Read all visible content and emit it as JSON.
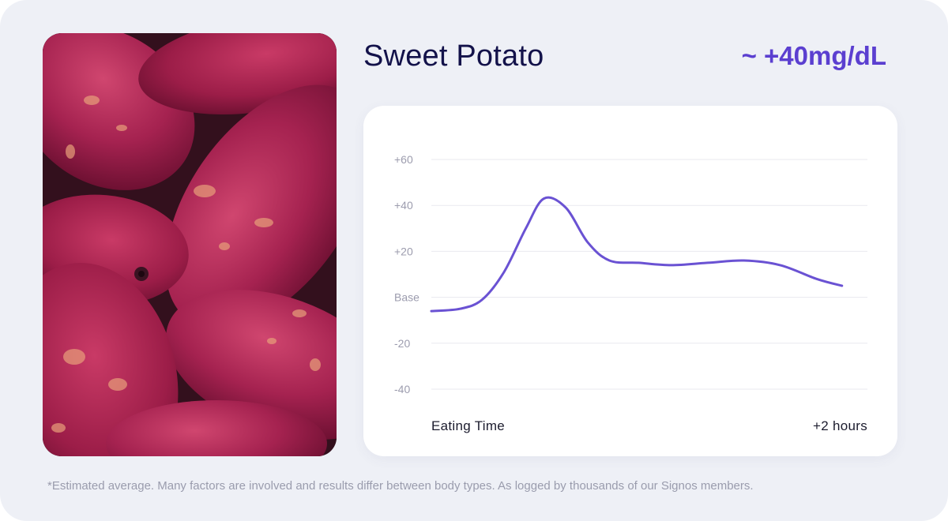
{
  "food": {
    "name": "Sweet Potato",
    "spike_label": "~ +40mg/dL"
  },
  "chart_data": {
    "type": "line",
    "title": "",
    "xlabel": "",
    "ylabel": "",
    "x_tick_labels": [
      "Eating Time",
      "+2 hours"
    ],
    "y_ticks": [
      {
        "value": 60,
        "label": "+60"
      },
      {
        "value": 40,
        "label": "+40"
      },
      {
        "value": 20,
        "label": "+20"
      },
      {
        "value": 0,
        "label": "Base"
      },
      {
        "value": -20,
        "label": "-20"
      },
      {
        "value": -40,
        "label": "-40"
      }
    ],
    "xlim": [
      0,
      120
    ],
    "ylim": [
      -40,
      60
    ],
    "grid": true,
    "series": [
      {
        "color": "#6a52d3",
        "x": [
          0,
          8,
          14,
          20,
          26,
          31,
          37,
          43,
          49,
          57,
          66,
          76,
          86,
          96,
          106,
          113
        ],
        "y": [
          -6,
          -5,
          -1,
          11,
          30,
          43,
          39,
          24,
          16,
          15,
          14,
          15,
          16,
          14,
          8,
          5
        ]
      }
    ]
  },
  "footnote": "*Estimated average. Many factors are involved and results differ between body types. As logged by thousands of our Signos members.",
  "colors": {
    "background": "#eef0f6",
    "title": "#13124a",
    "accent": "#5b3fd0",
    "line": "#6a52d3",
    "grid": "#e9e9ef",
    "tick": "#9c9cae"
  }
}
